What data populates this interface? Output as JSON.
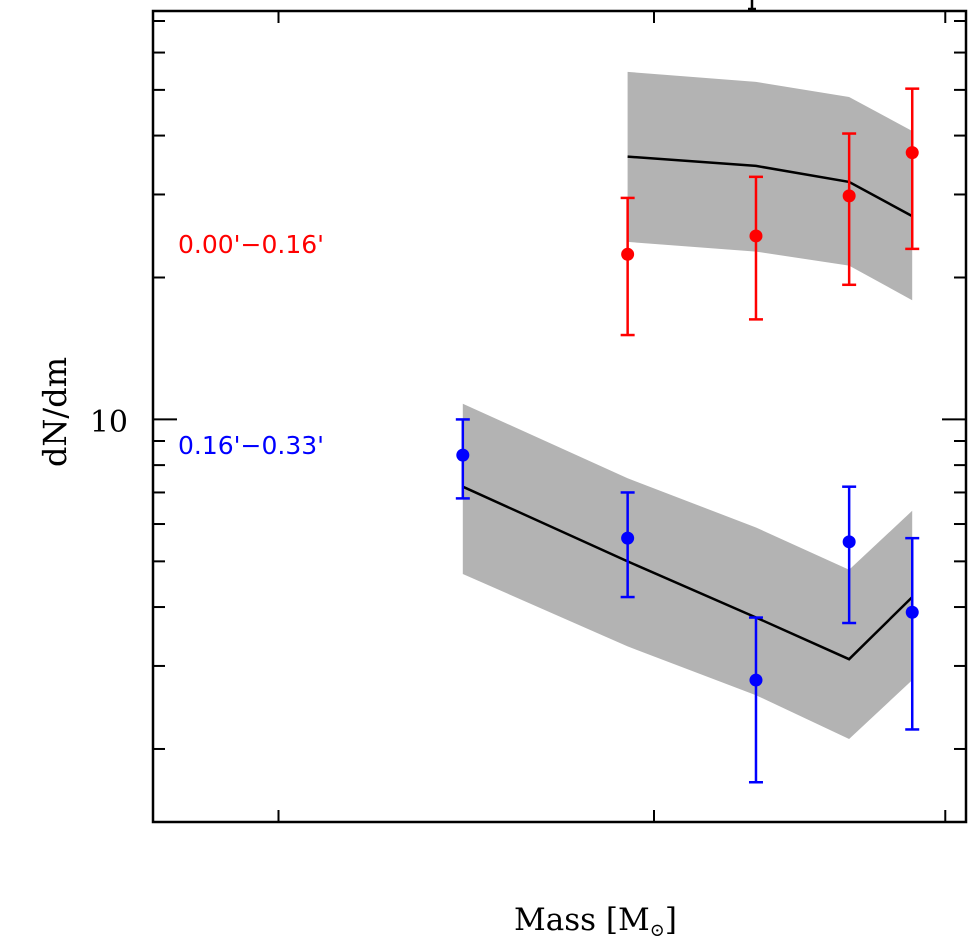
{
  "chart_data": {
    "type": "scatter",
    "title": "",
    "xlabel": "Mass",
    "xlabel_unit": "M",
    "xlabel_unit_sub": "⊙",
    "ylabel": "dN/dm",
    "xscale": "log",
    "yscale": "log",
    "xlim": [
      0.545,
      1.016
    ],
    "ylim": [
      1.4,
      73.5
    ],
    "x_ticks": [
      0.6,
      0.8,
      1.0
    ],
    "y_major_ticks": [
      10
    ],
    "y_major_tick_labels": [
      "10"
    ],
    "y_minor_ticks": [
      2,
      3,
      4,
      5,
      6,
      7,
      8,
      9,
      20,
      30,
      40,
      50,
      60,
      70
    ],
    "grid": false,
    "series": [
      {
        "name": "0.00'−0.16'",
        "color": "#ff0000",
        "points": [
          {
            "x": 0.784,
            "y": 22.4,
            "err_low": 15.1,
            "err_high": 29.5
          },
          {
            "x": 0.865,
            "y": 24.5,
            "err_low": 16.3,
            "err_high": 32.7
          },
          {
            "x": 0.929,
            "y": 29.8,
            "err_low": 19.3,
            "err_high": 40.4
          },
          {
            "x": 0.975,
            "y": 36.8,
            "err_low": 23.0,
            "err_high": 50.3
          }
        ],
        "model": {
          "x": [
            0.784,
            0.865,
            0.929,
            0.975
          ],
          "y": [
            36.1,
            34.5,
            31.9,
            27.0
          ],
          "band_high": [
            54.6,
            52.0,
            48.3,
            40.9
          ],
          "band_low": [
            23.8,
            22.7,
            21.2,
            17.9
          ]
        }
      },
      {
        "name": "0.16'−0.33'",
        "color": "#0000ff",
        "points": [
          {
            "x": 0.691,
            "y": 8.4,
            "err_low": 6.8,
            "err_high": 10.0
          },
          {
            "x": 0.784,
            "y": 5.6,
            "err_low": 4.2,
            "err_high": 7.0
          },
          {
            "x": 0.865,
            "y": 2.8,
            "err_low": 1.7,
            "err_high": 3.8
          },
          {
            "x": 0.929,
            "y": 5.5,
            "err_low": 3.7,
            "err_high": 7.2
          },
          {
            "x": 0.975,
            "y": 3.9,
            "err_low": 2.2,
            "err_high": 5.6
          }
        ],
        "model": {
          "x": [
            0.691,
            0.784,
            0.865,
            0.929,
            0.975
          ],
          "y": [
            7.2,
            5.0,
            3.8,
            3.1,
            4.2
          ],
          "band_high": [
            10.8,
            7.5,
            5.9,
            4.8,
            6.4
          ],
          "band_low": [
            4.7,
            3.3,
            2.6,
            2.1,
            2.8
          ]
        }
      }
    ],
    "model_line_color": "#000000",
    "band_color": "#b3b3b3",
    "annotations": [
      {
        "text": "0.00'−0.16'",
        "color": "#ff0000"
      },
      {
        "text": "0.16'−0.33'",
        "color": "#0000ff"
      }
    ]
  }
}
